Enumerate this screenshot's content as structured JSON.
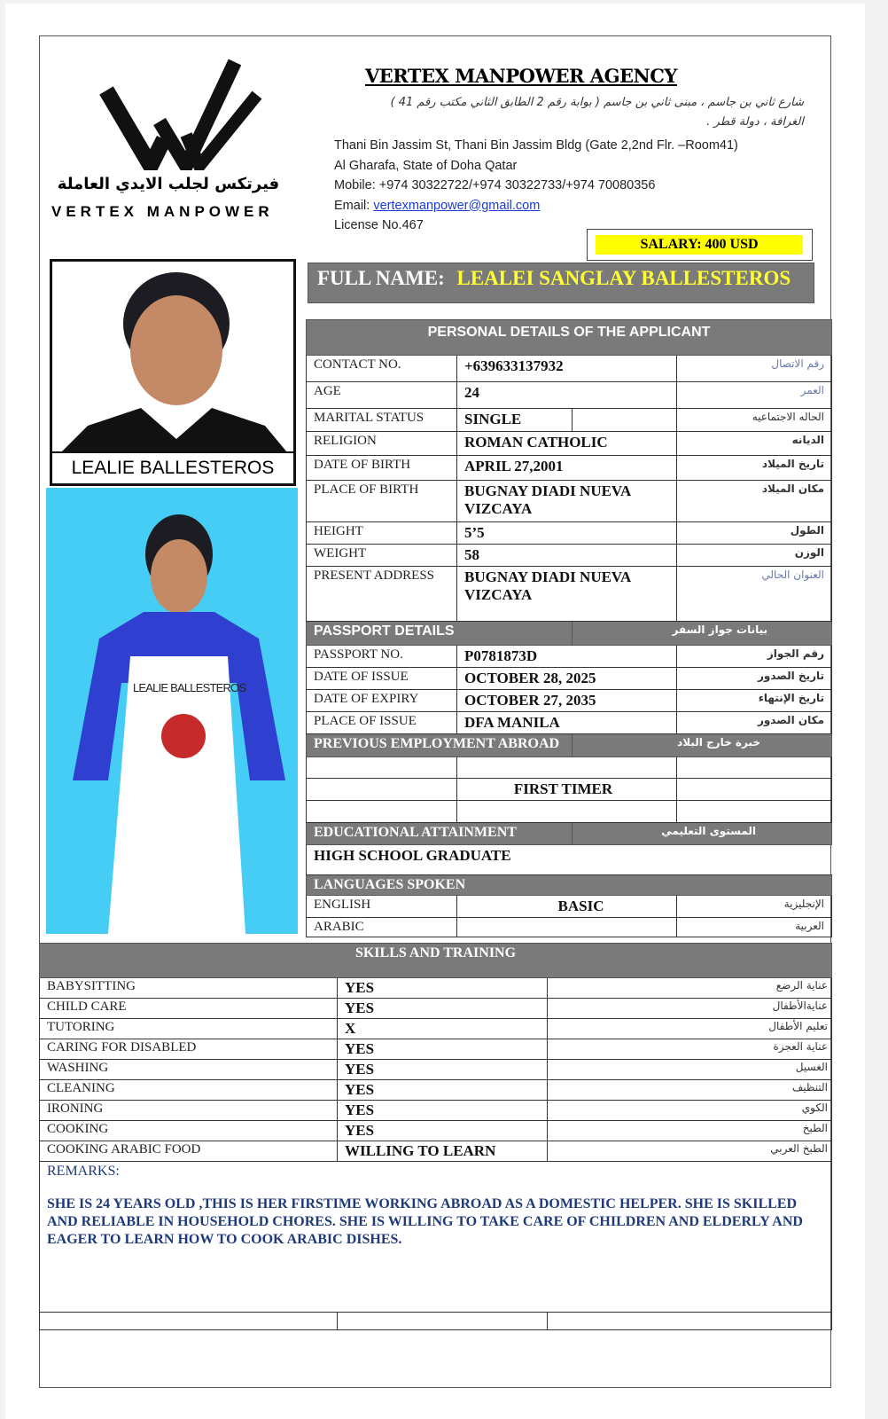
{
  "logo": {
    "arabic": "فيرتكس لجلب الايدي العاملة",
    "english": "VERTEX MANPOWER"
  },
  "header": {
    "title": "VERTEX MANPOWER AGENCY",
    "arabic_address_1": "شارع ثاني بن جاسم ، مبنى ثاني بن جاسم ( بوابة رقم 2 الطابق الثاني مكتب رقم 41 )",
    "arabic_address_2": "الغرافة ، دولة قطر .",
    "address_1": "Thani Bin Jassim St, Thani Bin Jassim Bldg (Gate 2,2nd Flr. –Room41)",
    "address_2": "Al Gharafa, State of Doha Qatar",
    "mobile": "Mobile: +974 30322722/+974 30322733/+974 70080356",
    "email_label": "Email: ",
    "email": "vertexmanpower@gmail.com",
    "license": "License No.467"
  },
  "salary": "SALARY: 400 USD",
  "full_name": {
    "label": "FULL NAME:",
    "value": "LEALEI SANGLAY BALLESTEROS"
  },
  "photo": {
    "caption": "LEALIE BALLESTEROS",
    "apron_text": "LEALIE BALLESTEROS"
  },
  "personal": {
    "title": "PERSONAL DETAILS OF THE APPLICANT",
    "rows": [
      {
        "label": "CONTACT NO.",
        "value": "+639633137932",
        "ar": "رقم الاتصال"
      },
      {
        "label": "AGE",
        "value": "24",
        "ar": "العمر"
      },
      {
        "label": "MARITAL STATUS",
        "value": "SINGLE",
        "ar": "الحاله الاجتماعيه"
      },
      {
        "label": "RELIGION",
        "value": "ROMAN CATHOLIC",
        "ar": "الديانه"
      },
      {
        "label": "DATE OF BIRTH",
        "value": "APRIL 27,2001",
        "ar": "تاريخ الميلاد"
      },
      {
        "label": "PLACE OF BIRTH",
        "value": "BUGNAY DIADI NUEVA VIZCAYA",
        "ar": "مكان الميلاد"
      },
      {
        "label": "HEIGHT",
        "value": "5’5",
        "ar": "الطول"
      },
      {
        "label": "WEIGHT",
        "value": "58",
        "ar": "الوزن"
      },
      {
        "label": "PRESENT ADDRESS",
        "value": "BUGNAY DIADI NUEVA VIZCAYA",
        "ar": "العنوان الحالي"
      }
    ]
  },
  "passport": {
    "title": "PASSPORT DETAILS",
    "title_ar": "بيانات جواز السفر",
    "rows": [
      {
        "label": "PASSPORT NO.",
        "value": "P0781873D",
        "ar": "رقم الجواز"
      },
      {
        "label": "DATE OF ISSUE",
        "value": "OCTOBER 28, 2025",
        "ar": "تاريخ الصدور"
      },
      {
        "label": "DATE OF EXPIRY",
        "value": "OCTOBER 27, 2035",
        "ar": "تاريخ الإنتهاء"
      },
      {
        "label": "PLACE OF ISSUE",
        "value": "DFA MANILA",
        "ar": "مكان الصدور"
      }
    ]
  },
  "employment": {
    "title": "PREVIOUS EMPLOYMENT ABROAD",
    "title_ar": "خبرة خارج البلاد",
    "value": "FIRST TIMER"
  },
  "education": {
    "title": "EDUCATIONAL ATTAINMENT",
    "title_ar": "المستوى التعليمي",
    "value": "HIGH SCHOOL GRADUATE"
  },
  "languages": {
    "title": "LANGUAGES SPOKEN",
    "rows": [
      {
        "label": "ENGLISH",
        "value": "BASIC",
        "ar": "الإنجليزية"
      },
      {
        "label": "ARABIC",
        "value": "",
        "ar": "العربية"
      }
    ]
  },
  "skills": {
    "title": "SKILLS AND TRAINING",
    "rows": [
      {
        "label": "BABYSITTING",
        "value": "YES",
        "ar": "عناية الرضع"
      },
      {
        "label": "CHILD CARE",
        "value": "YES",
        "ar": "عنايةالأطفال"
      },
      {
        "label": "TUTORING",
        "value": "X",
        "ar": "تعليم الأطفال"
      },
      {
        "label": "CARING FOR DISABLED",
        "value": "YES",
        "ar": "عناية العجزة"
      },
      {
        "label": "WASHING",
        "value": "YES",
        "ar": "الغسيل"
      },
      {
        "label": "CLEANING",
        "value": "YES",
        "ar": "التنظيف"
      },
      {
        "label": "IRONING",
        "value": "YES",
        "ar": "الكوي"
      },
      {
        "label": "COOKING",
        "value": "YES",
        "ar": "الطبخ"
      },
      {
        "label": "COOKING ARABIC FOOD",
        "value": "WILLING TO LEARN",
        "ar": "الطبخ العربي"
      }
    ]
  },
  "remarks": {
    "label": "REMARKS:",
    "text": "SHE IS 24 YEARS OLD ,THIS IS HER FIRSTIME WORKING ABROAD AS A DOMESTIC HELPER. SHE IS SKILLED AND RELIABLE IN HOUSEHOLD CHORES. SHE IS WILLING TO TAKE CARE OF CHILDREN AND ELDERLY AND EAGER TO LEARN HOW TO COOK ARABIC DISHES."
  }
}
